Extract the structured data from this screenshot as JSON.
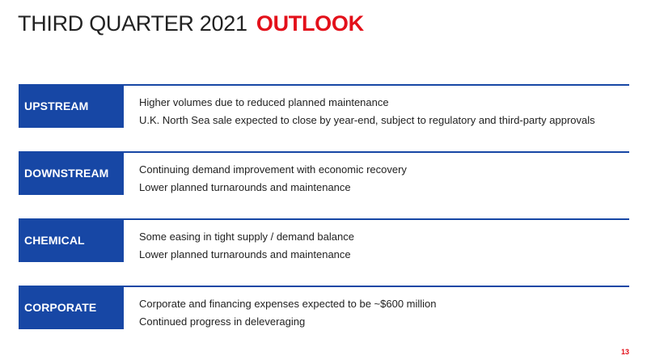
{
  "title": {
    "main": "THIRD QUARTER 2021",
    "accent": "OUTLOOK"
  },
  "colors": {
    "brand_blue": "#1747a5",
    "accent_red": "#e3101a"
  },
  "sections": [
    {
      "label": "UPSTREAM",
      "bullets": [
        "Higher volumes due to reduced planned maintenance",
        "U.K. North Sea sale expected to close by year-end, subject to regulatory and third-party approvals"
      ]
    },
    {
      "label": "DOWNSTREAM",
      "bullets": [
        "Continuing demand improvement with economic recovery",
        "Lower planned turnarounds and maintenance"
      ]
    },
    {
      "label": "CHEMICAL",
      "bullets": [
        "Some easing in tight supply / demand balance",
        "Lower planned turnarounds and maintenance"
      ]
    },
    {
      "label": "CORPORATE",
      "bullets": [
        "Corporate and financing expenses expected to be ~$600 million",
        "Continued progress in deleveraging"
      ]
    }
  ],
  "page_number": "13"
}
